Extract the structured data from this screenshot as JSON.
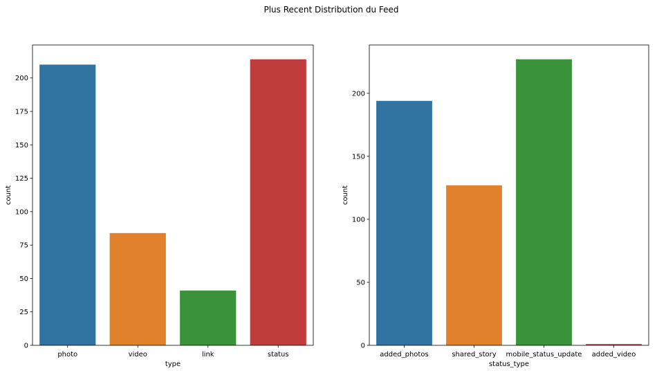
{
  "suptitle": "Plus Recent Distribution du Feed",
  "chart_data": [
    {
      "type": "bar",
      "categories": [
        "photo",
        "video",
        "link",
        "status"
      ],
      "values": [
        210,
        84,
        41,
        214
      ],
      "colors": [
        "#3274a1",
        "#e1812c",
        "#3a923a",
        "#c03d3e"
      ],
      "xlabel": "type",
      "ylabel": "count",
      "ylim": [
        0,
        224.7
      ],
      "yticks": [
        0,
        25,
        50,
        75,
        100,
        125,
        150,
        175,
        200
      ],
      "grid": false
    },
    {
      "type": "bar",
      "categories": [
        "added_photos",
        "shared_story",
        "mobile_status_update",
        "added_video"
      ],
      "values": [
        194,
        127,
        227,
        1
      ],
      "colors": [
        "#3274a1",
        "#e1812c",
        "#3a923a",
        "#c03d3e"
      ],
      "xlabel": "status_type",
      "ylabel": "count",
      "ylim": [
        0,
        238.35
      ],
      "yticks": [
        0,
        50,
        100,
        150,
        200
      ],
      "grid": false
    }
  ]
}
